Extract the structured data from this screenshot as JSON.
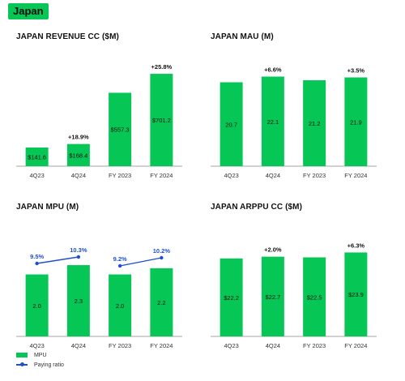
{
  "region_label": "Japan",
  "colors": {
    "bar": "#06c755",
    "line": "#1f4fd1",
    "text": "#111111",
    "axis": "#888888",
    "badge": "#06c755"
  },
  "chart_data": [
    {
      "id": "revenue",
      "type": "bar",
      "title": "JAPAN REVENUE CC ($M)",
      "categories": [
        "4Q23",
        "4Q24",
        "FY 2023",
        "FY 2024"
      ],
      "series": [
        {
          "values": [
            141.6,
            168.4,
            557.3,
            701.2
          ]
        }
      ],
      "bar_labels": [
        "$141.6",
        "$168.4",
        "$557.3",
        "$701.2"
      ],
      "annotations": [
        "",
        "+18.9%",
        "",
        "+25.8%"
      ],
      "ylim": [
        0,
        800
      ]
    },
    {
      "id": "mau",
      "type": "bar",
      "title": "JAPAN MAU (M)",
      "categories": [
        "4Q23",
        "4Q24",
        "FY 2023",
        "FY 2024"
      ],
      "series": [
        {
          "values": [
            20.7,
            22.1,
            21.2,
            21.9
          ]
        }
      ],
      "bar_labels": [
        "20.7",
        "22.1",
        "21.2",
        "21.9"
      ],
      "annotations": [
        "",
        "+6.6%",
        "",
        "+3.5%"
      ],
      "ylim": [
        0,
        26
      ]
    },
    {
      "id": "mpu",
      "type": "bar",
      "title": "JAPAN MPU (M)",
      "categories": [
        "4Q23",
        "4Q24",
        "FY 2023",
        "FY 2024"
      ],
      "series": [
        {
          "name": "MPU",
          "values": [
            2.0,
            2.3,
            2.0,
            2.2
          ]
        },
        {
          "name": "Paying ratio",
          "type": "line",
          "values": [
            9.5,
            10.3,
            9.2,
            10.2
          ],
          "labels": [
            "9.5%",
            "10.3%",
            "9.2%",
            "10.2%"
          ],
          "segments": [
            [
              0,
              1
            ],
            [
              2,
              3
            ]
          ]
        }
      ],
      "bar_labels": [
        "2.0",
        "2.3",
        "2.0",
        "2.2"
      ],
      "annotations": [
        "",
        "",
        "",
        ""
      ],
      "ylim": [
        0,
        3.4
      ],
      "line_ylim": [
        7.5,
        11.0
      ],
      "legend": "bottom-left"
    },
    {
      "id": "arppu",
      "type": "bar",
      "title": "JAPAN ARPPU CC ($M)",
      "categories": [
        "4Q23",
        "4Q24",
        "FY 2023",
        "FY 2024"
      ],
      "series": [
        {
          "values": [
            22.2,
            22.7,
            22.5,
            23.9
          ]
        }
      ],
      "bar_labels": [
        "$22.2",
        "$22.7",
        "$22.5",
        "$23.9"
      ],
      "annotations": [
        "",
        "+2.0%",
        "",
        "+6.3%"
      ],
      "ylim": [
        0,
        30
      ]
    }
  ]
}
